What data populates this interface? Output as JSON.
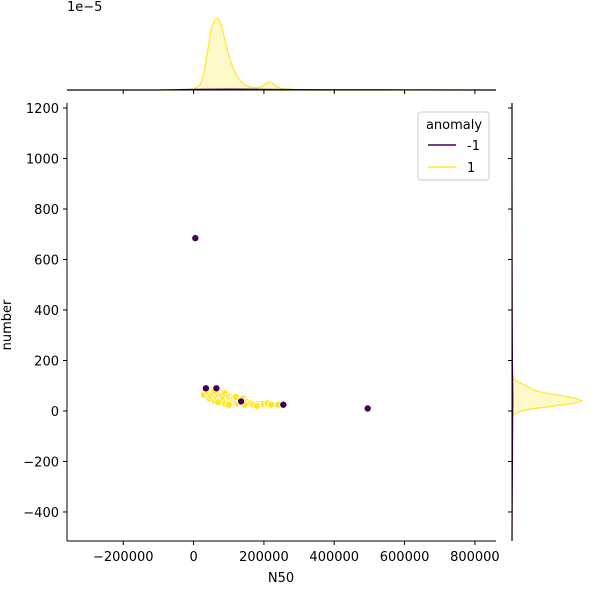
{
  "chart_data": {
    "type": "scatter",
    "subtype": "jointplot",
    "xlabel": "N50",
    "ylabel": "number",
    "xlim": [
      -360000,
      860000
    ],
    "ylim": [
      -515,
      1220
    ],
    "x_ticks": [
      -200000,
      0,
      200000,
      400000,
      600000,
      800000
    ],
    "x_tick_labels": [
      "−200000",
      "0",
      "200000",
      "400000",
      "600000",
      "800000"
    ],
    "y_ticks": [
      -400,
      -200,
      0,
      200,
      400,
      600,
      800,
      1000,
      1200
    ],
    "y_tick_labels": [
      "−400",
      "−200",
      "0",
      "200",
      "400",
      "600",
      "800",
      "1000",
      "1200"
    ],
    "marginal_x_scale_label": "1e−5",
    "legend": {
      "title": "anomaly",
      "placement": "upper right",
      "entries": [
        {
          "label": "-1",
          "color": "#440154"
        },
        {
          "label": "1",
          "color": "#fde725"
        }
      ]
    },
    "series": [
      {
        "name": "1",
        "color": "#fde725",
        "points": [
          [
            30000,
            65
          ],
          [
            40000,
            75
          ],
          [
            45000,
            50
          ],
          [
            50000,
            60
          ],
          [
            55000,
            70
          ],
          [
            60000,
            40
          ],
          [
            65000,
            55
          ],
          [
            70000,
            65
          ],
          [
            75000,
            45
          ],
          [
            80000,
            60
          ],
          [
            85000,
            50
          ],
          [
            90000,
            70
          ],
          [
            95000,
            40
          ],
          [
            100000,
            55
          ],
          [
            105000,
            45
          ],
          [
            110000,
            35
          ],
          [
            115000,
            50
          ],
          [
            120000,
            40
          ],
          [
            125000,
            30
          ],
          [
            130000,
            45
          ],
          [
            140000,
            50
          ],
          [
            150000,
            35
          ],
          [
            160000,
            30
          ],
          [
            170000,
            25
          ],
          [
            180000,
            20
          ],
          [
            200000,
            28
          ],
          [
            210000,
            30
          ],
          [
            220000,
            25
          ],
          [
            240000,
            25
          ],
          [
            60000,
            80
          ],
          [
            70000,
            35
          ],
          [
            90000,
            30
          ],
          [
            100000,
            25
          ],
          [
            120000,
            55
          ],
          [
            145000,
            25
          ]
        ]
      },
      {
        "name": "-1",
        "color": "#440154",
        "points": [
          [
            5000,
            685
          ],
          [
            35000,
            90
          ],
          [
            65000,
            90
          ],
          [
            135000,
            38
          ],
          [
            255000,
            25
          ],
          [
            495000,
            10
          ]
        ]
      }
    ],
    "marginal_x_density": {
      "series_1": [
        [
          -360000,
          0
        ],
        [
          -20000,
          0
        ],
        [
          0,
          0.01
        ],
        [
          20000,
          0.08
        ],
        [
          30000,
          0.25
        ],
        [
          40000,
          0.55
        ],
        [
          50000,
          0.85
        ],
        [
          60000,
          0.98
        ],
        [
          70000,
          1.0
        ],
        [
          80000,
          0.88
        ],
        [
          90000,
          0.68
        ],
        [
          100000,
          0.48
        ],
        [
          110000,
          0.33
        ],
        [
          120000,
          0.22
        ],
        [
          130000,
          0.14
        ],
        [
          140000,
          0.09
        ],
        [
          150000,
          0.06
        ],
        [
          160000,
          0.04
        ],
        [
          180000,
          0.03
        ],
        [
          195000,
          0.05
        ],
        [
          205000,
          0.09
        ],
        [
          215000,
          0.11
        ],
        [
          225000,
          0.09
        ],
        [
          235000,
          0.05
        ],
        [
          250000,
          0.02
        ],
        [
          280000,
          0.01
        ],
        [
          320000,
          0.0
        ],
        [
          860000,
          0
        ]
      ],
      "series_-1": [
        [
          -360000,
          0
        ],
        [
          -100000,
          0.0
        ],
        [
          0,
          0.008
        ],
        [
          100000,
          0.012
        ],
        [
          200000,
          0.01
        ],
        [
          300000,
          0.006
        ],
        [
          400000,
          0.004
        ],
        [
          500000,
          0.004
        ],
        [
          600000,
          0.002
        ],
        [
          860000,
          0
        ]
      ]
    },
    "marginal_y_density": {
      "series_1": [
        [
          -515,
          0
        ],
        [
          -20,
          0
        ],
        [
          0,
          0.12
        ],
        [
          10,
          0.32
        ],
        [
          20,
          0.62
        ],
        [
          30,
          0.88
        ],
        [
          40,
          1.0
        ],
        [
          50,
          0.92
        ],
        [
          60,
          0.72
        ],
        [
          70,
          0.5
        ],
        [
          80,
          0.34
        ],
        [
          90,
          0.26
        ],
        [
          100,
          0.2
        ],
        [
          110,
          0.12
        ],
        [
          120,
          0.06
        ],
        [
          130,
          0.02
        ],
        [
          150,
          0
        ],
        [
          1220,
          0
        ]
      ],
      "series_-1": [
        [
          -515,
          0
        ],
        [
          0,
          0.01
        ],
        [
          50,
          0.012
        ],
        [
          100,
          0.01
        ],
        [
          200,
          0.006
        ],
        [
          400,
          0.003
        ],
        [
          600,
          0.002
        ],
        [
          700,
          0.002
        ],
        [
          900,
          0
        ],
        [
          1220,
          0
        ]
      ]
    }
  }
}
